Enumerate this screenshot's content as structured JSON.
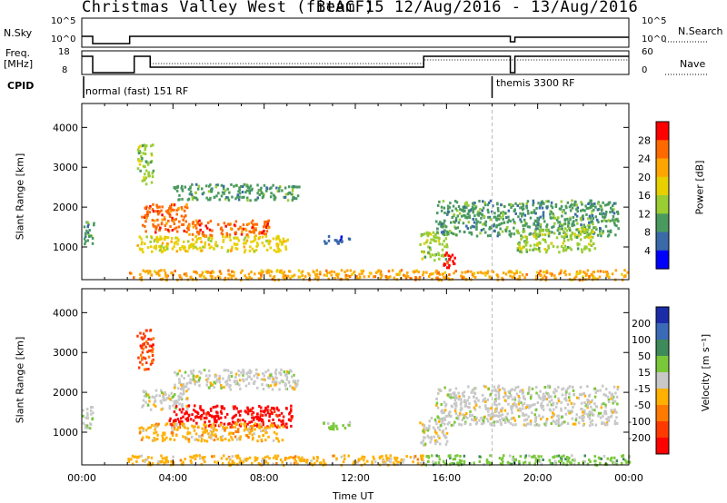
{
  "header": {
    "title": "Christmas Valley West (fitACF)",
    "subtitle": "Beam 15 12/Aug/2016 - 13/Aug/2016"
  },
  "strip_nsky": {
    "left_label": "N.Sky",
    "right_label": "N.Search",
    "left_ticks": [
      "10^5",
      "10^0"
    ],
    "right_ticks": [
      "10^5",
      "10^0"
    ]
  },
  "strip_freq": {
    "left_label_1": "Freq.",
    "left_label_2": "[MHz]",
    "right_label": "Nave",
    "left_ticks": [
      "18",
      "8"
    ],
    "right_ticks": [
      "60",
      "0"
    ]
  },
  "cpid": {
    "label": "CPID",
    "modes": [
      {
        "name": "normal (fast) 151 RF",
        "start_hour": 0
      },
      {
        "name": "themis 3300 RF",
        "start_hour": 18
      }
    ]
  },
  "x_axis": {
    "label": "Time UT",
    "ticks": [
      "00:00",
      "04:00",
      "08:00",
      "12:00",
      "16:00",
      "20:00",
      "00:00"
    ]
  },
  "chart_data": [
    {
      "type": "heatmap",
      "panel": "power",
      "ylabel": "Slant Range [km]",
      "y_ticks": [
        "1000",
        "2000",
        "3000",
        "4000"
      ],
      "ylim": [
        180,
        4600
      ],
      "xlim": [
        0,
        24
      ],
      "colorbar": {
        "label": "Power [dB]",
        "ticks": [
          "28",
          "24",
          "20",
          "16",
          "12",
          "8",
          "4"
        ],
        "colors": [
          "#ff0000",
          "#ff6a00",
          "#ffa500",
          "#e8d000",
          "#9acd32",
          "#4a9a60",
          "#3a6aa8",
          "#0000ff"
        ]
      },
      "regions": [
        {
          "t0": 0.0,
          "t1": 0.5,
          "r0": 1100,
          "r1": 1700,
          "c": 5
        },
        {
          "t0": 2.4,
          "t1": 3.1,
          "r0": 2600,
          "r1": 3600,
          "c": 4
        },
        {
          "t0": 2.6,
          "t1": 4.6,
          "r0": 1400,
          "r1": 2100,
          "c": 1
        },
        {
          "t0": 4.6,
          "t1": 8.2,
          "r0": 1300,
          "r1": 1700,
          "c": 1
        },
        {
          "t0": 2.4,
          "t1": 9.0,
          "r0": 900,
          "r1": 1300,
          "c": 3
        },
        {
          "t0": 4.0,
          "t1": 9.5,
          "r0": 2200,
          "r1": 2600,
          "c": 5
        },
        {
          "t0": 10.5,
          "t1": 11.8,
          "r0": 1100,
          "r1": 1300,
          "c": 6
        },
        {
          "t0": 14.8,
          "t1": 16.0,
          "r0": 700,
          "r1": 1400,
          "c": 4
        },
        {
          "t0": 15.8,
          "t1": 16.4,
          "r0": 500,
          "r1": 900,
          "c": 0
        },
        {
          "t0": 15.5,
          "t1": 23.5,
          "r0": 1300,
          "r1": 2200,
          "c": 5
        },
        {
          "t0": 19.0,
          "t1": 22.5,
          "r0": 900,
          "r1": 1500,
          "c": 4
        },
        {
          "t0": 2.0,
          "t1": 24.0,
          "r0": 200,
          "r1": 450,
          "c": 2
        }
      ]
    },
    {
      "type": "heatmap",
      "panel": "velocity",
      "ylabel": "Slant Range [km]",
      "y_ticks": [
        "1000",
        "2000",
        "3000",
        "4000"
      ],
      "ylim": [
        180,
        4600
      ],
      "xlim": [
        0,
        24
      ],
      "colorbar": {
        "label": "Velocity [m s⁻¹]",
        "ticks": [
          "200",
          "100",
          "50",
          "15",
          "-15",
          "-50",
          "-100",
          "-200"
        ],
        "colors": [
          "#1c2ca8",
          "#3a6ab8",
          "#3e8a5a",
          "#7ac83a",
          "#c8c8c8",
          "#ffb000",
          "#ff7a00",
          "#ff3a00",
          "#ff0000"
        ]
      },
      "regions": [
        {
          "t0": 0.0,
          "t1": 0.5,
          "r0": 1100,
          "r1": 1700,
          "c": 4
        },
        {
          "t0": 2.4,
          "t1": 3.1,
          "r0": 2600,
          "r1": 3600,
          "c": 7
        },
        {
          "t0": 2.6,
          "t1": 4.6,
          "r0": 1600,
          "r1": 2100,
          "c": 4
        },
        {
          "t0": 3.8,
          "t1": 9.2,
          "r0": 1150,
          "r1": 1700,
          "c": 8
        },
        {
          "t0": 2.4,
          "t1": 8.8,
          "r0": 800,
          "r1": 1250,
          "c": 5
        },
        {
          "t0": 4.0,
          "t1": 9.5,
          "r0": 2100,
          "r1": 2600,
          "c": 4
        },
        {
          "t0": 10.5,
          "t1": 11.8,
          "r0": 1100,
          "r1": 1300,
          "c": 3
        },
        {
          "t0": 14.8,
          "t1": 16.0,
          "r0": 700,
          "r1": 1400,
          "c": 4
        },
        {
          "t0": 15.5,
          "t1": 23.5,
          "r0": 1200,
          "r1": 2200,
          "c": 4
        },
        {
          "t0": 2.0,
          "t1": 15.0,
          "r0": 200,
          "r1": 450,
          "c": 5
        },
        {
          "t0": 15.0,
          "t1": 24.0,
          "r0": 200,
          "r1": 450,
          "c": 3
        }
      ]
    }
  ]
}
